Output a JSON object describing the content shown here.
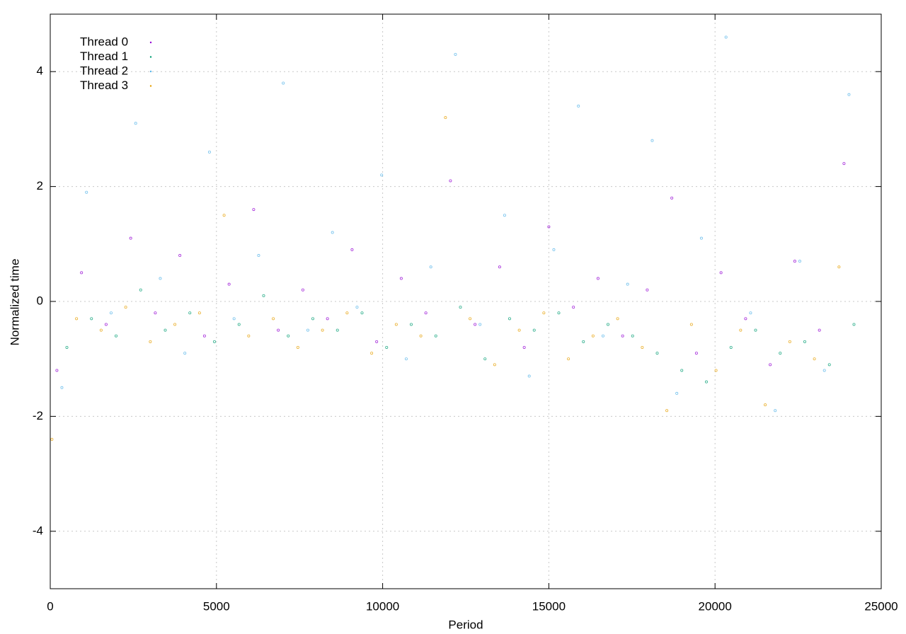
{
  "chart_data": {
    "type": "scatter",
    "x_label": "Period",
    "y_label": "Normalized time",
    "xlim": [
      0,
      25000
    ],
    "xticks": [
      0,
      5000,
      10000,
      15000,
      20000,
      25000
    ],
    "ylim": [
      -5,
      5
    ],
    "yticks": [
      -4,
      -2,
      0,
      2,
      4
    ],
    "grid": true,
    "legend": "top-left",
    "series": [
      {
        "name": "Thread 0",
        "color": "#9400d3",
        "x": [
          200,
          940,
          1680,
          2420,
          3160,
          3900,
          4640,
          5380,
          6120,
          6860,
          7600,
          8340,
          9080,
          9820,
          10560,
          11300,
          12040,
          12780,
          13520,
          14260,
          15000,
          15740,
          16480,
          17220,
          17960,
          18700,
          19440,
          20180,
          20920,
          21660,
          22400,
          23140,
          23880
        ],
        "values": [
          -1.2,
          0.5,
          -0.4,
          1.1,
          -0.2,
          0.8,
          -0.6,
          0.3,
          1.6,
          -0.5,
          0.2,
          -0.3,
          0.9,
          -0.7,
          0.4,
          -0.2,
          2.1,
          -0.4,
          0.6,
          -0.8,
          1.3,
          -0.1,
          0.4,
          -0.6,
          0.2,
          1.8,
          -0.9,
          0.5,
          -0.3,
          -1.1,
          0.7,
          -0.5,
          2.4
        ]
      },
      {
        "name": "Thread 1",
        "color": "#009e73",
        "x": [
          500,
          1240,
          1980,
          2720,
          3460,
          4200,
          4940,
          5680,
          6420,
          7160,
          7900,
          8640,
          9380,
          10120,
          10860,
          11600,
          12340,
          13080,
          13820,
          14560,
          15300,
          16040,
          16780,
          17520,
          18260,
          19000,
          19740,
          20480,
          21220,
          21960,
          22700,
          23440,
          24180
        ],
        "values": [
          -0.8,
          -0.3,
          -0.6,
          0.2,
          -0.5,
          -0.2,
          -0.7,
          -0.4,
          0.1,
          -0.6,
          -0.3,
          -0.5,
          -0.2,
          -0.8,
          -0.4,
          -0.6,
          -0.1,
          -1.0,
          -0.3,
          -0.5,
          -0.2,
          -0.7,
          -0.4,
          -0.6,
          -0.9,
          -1.2,
          -1.4,
          -0.8,
          -0.5,
          -0.9,
          -0.7,
          -1.1,
          -0.4
        ]
      },
      {
        "name": "Thread 2",
        "color": "#56b4e9",
        "x": [
          350,
          1090,
          1830,
          2570,
          3310,
          4050,
          4790,
          5530,
          6270,
          7010,
          7750,
          8490,
          9230,
          9970,
          10710,
          11450,
          12190,
          12930,
          13670,
          14410,
          15150,
          15890,
          16630,
          17370,
          18110,
          18850,
          19590,
          20330,
          21070,
          21810,
          22550,
          23290,
          24030
        ],
        "values": [
          -1.5,
          1.9,
          -0.2,
          3.1,
          0.4,
          -0.9,
          2.6,
          -0.3,
          0.8,
          3.8,
          -0.5,
          1.2,
          -0.1,
          2.2,
          -1.0,
          0.6,
          4.3,
          -0.4,
          1.5,
          -1.3,
          0.9,
          3.4,
          -0.6,
          0.3,
          2.8,
          -1.6,
          1.1,
          4.6,
          -0.2,
          -1.9,
          0.7,
          -1.2,
          3.6
        ]
      },
      {
        "name": "Thread 3",
        "color": "#e69f00",
        "x": [
          50,
          790,
          1530,
          2270,
          3010,
          3750,
          4490,
          5230,
          5970,
          6710,
          7450,
          8190,
          8930,
          9670,
          10410,
          11150,
          11890,
          12630,
          13370,
          14110,
          14850,
          15590,
          16330,
          17070,
          17810,
          18550,
          19290,
          20030,
          20770,
          21510,
          22250,
          22990,
          23730
        ],
        "values": [
          -2.4,
          -0.3,
          -0.5,
          -0.1,
          -0.7,
          -0.4,
          -0.2,
          1.5,
          -0.6,
          -0.3,
          -0.8,
          -0.5,
          -0.2,
          -0.9,
          -0.4,
          -0.6,
          3.2,
          -0.3,
          -1.1,
          -0.5,
          -0.2,
          -1.0,
          -0.6,
          -0.3,
          -0.8,
          -1.9,
          -0.4,
          -1.2,
          -0.5,
          -1.8,
          -0.7,
          -1.0,
          0.6
        ]
      }
    ]
  }
}
